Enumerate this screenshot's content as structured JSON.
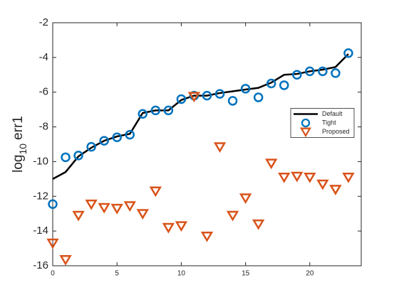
{
  "chart_data": {
    "type": "line",
    "ylabel_parts": [
      "log",
      "10",
      "err1"
    ],
    "x": [
      0,
      1,
      2,
      3,
      4,
      5,
      6,
      7,
      8,
      9,
      10,
      11,
      12,
      13,
      14,
      15,
      16,
      17,
      18,
      19,
      20,
      21,
      22,
      23
    ],
    "series": [
      {
        "name": "Default",
        "color": "#000000",
        "marker": "none",
        "values": [
          -11.0,
          -10.6,
          -9.7,
          -9.2,
          -8.8,
          -8.55,
          -8.4,
          -7.2,
          -7.05,
          -7.05,
          -6.45,
          -6.2,
          -6.2,
          -6.05,
          -5.95,
          -5.85,
          -5.75,
          -5.45,
          -5.0,
          -4.95,
          -4.8,
          -4.7,
          -4.55,
          -3.8
        ]
      },
      {
        "name": "Tight",
        "color": "#0072bd",
        "marker": "circle",
        "values": [
          -12.45,
          -9.75,
          -9.65,
          -9.15,
          -8.8,
          -8.6,
          -8.45,
          -7.25,
          -7.05,
          -7.05,
          -6.4,
          -6.2,
          -6.2,
          -6.1,
          -6.5,
          -5.8,
          -6.3,
          -5.5,
          -5.6,
          -5.0,
          -4.8,
          -4.8,
          -4.9,
          -3.75
        ]
      },
      {
        "name": "Proposed",
        "color": "#d95319",
        "marker": "triangle-down",
        "values": [
          -14.7,
          -15.65,
          -13.1,
          -12.45,
          -12.65,
          -12.7,
          -12.55,
          -13.0,
          -11.7,
          -13.8,
          -13.7,
          -6.25,
          -14.3,
          -9.15,
          -13.1,
          -12.1,
          -13.6,
          -10.1,
          -10.9,
          -10.85,
          -10.9,
          -11.3,
          -11.6,
          -10.9
        ]
      }
    ],
    "xlim": [
      0,
      24
    ],
    "xticks": [
      0,
      5,
      10,
      15,
      20
    ],
    "ylim": [
      -16,
      -2
    ],
    "yticks": [
      -16,
      -14,
      -12,
      -10,
      -8,
      -6,
      -4,
      -2
    ],
    "legend_loc": "east"
  }
}
